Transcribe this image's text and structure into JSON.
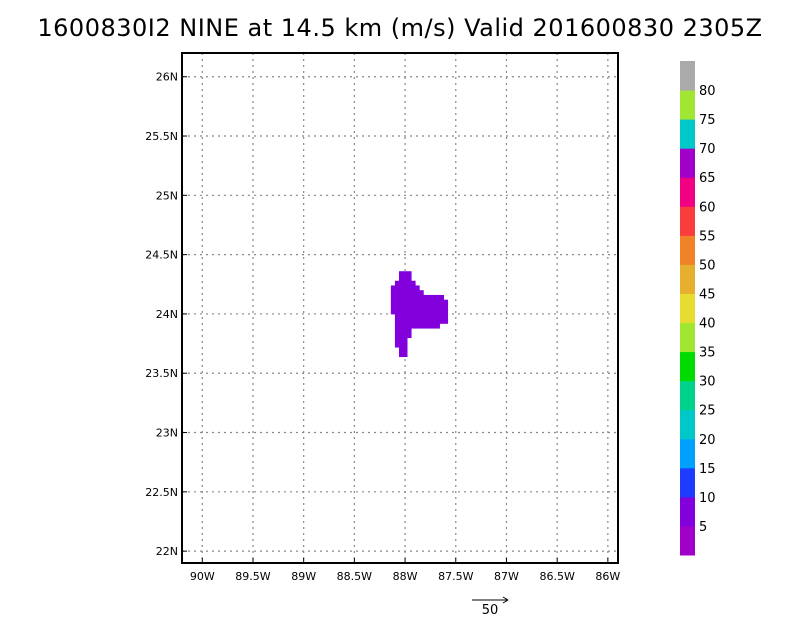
{
  "chart_data": {
    "type": "heatmap",
    "title": "1600830I2 NINE at 14.5 km (m/s) Valid 201600830 2305Z",
    "xlim": [
      -90.2,
      -85.9
    ],
    "ylim": [
      21.9,
      26.2
    ],
    "x_ticks": [
      -90,
      -89.5,
      -89,
      -88.5,
      -88,
      -87.5,
      -87,
      -86.5,
      -86
    ],
    "x_tick_labels": [
      "90W",
      "89.5W",
      "89W",
      "88.5W",
      "88W",
      "87.5W",
      "87W",
      "86.5W",
      "86W"
    ],
    "y_ticks": [
      22,
      22.5,
      23,
      23.5,
      24,
      24.5,
      25,
      25.5,
      26
    ],
    "y_tick_labels": [
      "22N",
      "22.5N",
      "23N",
      "23.5N",
      "24N",
      "24.5N",
      "25N",
      "25.5N",
      "26N"
    ],
    "grid": true,
    "vector_reference": {
      "label": "50"
    },
    "colorbar": {
      "levels": [
        "5",
        "10",
        "15",
        "20",
        "25",
        "30",
        "35",
        "40",
        "45",
        "50",
        "55",
        "60",
        "65",
        "70",
        "75",
        "80"
      ],
      "colors": [
        "#a000c8",
        "#8200dc",
        "#1e3cff",
        "#00a0ff",
        "#00c8c8",
        "#00d28c",
        "#00dc00",
        "#a0e632",
        "#e6dc32",
        "#e6af2d",
        "#f08228",
        "#fa3c3c",
        "#f00082",
        "#a000c8",
        "#00c8c8",
        "#a0e632",
        "#aaaaaa"
      ]
    },
    "cells": {
      "dlon": 0.04,
      "dlat": 0.04,
      "value": 5,
      "color": "#8200dc",
      "lat_rows": [
        {
          "lat": 24.32,
          "lon_min": -88.06,
          "lon_max": -87.94
        },
        {
          "lat": 24.28,
          "lon_min": -88.06,
          "lon_max": -87.94
        },
        {
          "lat": 24.24,
          "lon_min": -88.1,
          "lon_max": -87.9
        },
        {
          "lat": 24.2,
          "lon_min": -88.14,
          "lon_max": -87.86
        },
        {
          "lat": 24.16,
          "lon_min": -88.14,
          "lon_max": -87.82
        },
        {
          "lat": 24.12,
          "lon_min": -88.14,
          "lon_max": -87.62
        },
        {
          "lat": 24.08,
          "lon_min": -88.14,
          "lon_max": -87.58
        },
        {
          "lat": 24.04,
          "lon_min": -88.14,
          "lon_max": -87.58
        },
        {
          "lat": 24.0,
          "lon_min": -88.14,
          "lon_max": -87.58
        },
        {
          "lat": 23.96,
          "lon_min": -88.1,
          "lon_max": -87.58
        },
        {
          "lat": 23.92,
          "lon_min": -88.1,
          "lon_max": -87.58
        },
        {
          "lat": 23.88,
          "lon_min": -88.1,
          "lon_max": -87.66
        },
        {
          "lat": 23.84,
          "lon_min": -88.1,
          "lon_max": -87.94
        },
        {
          "lat": 23.8,
          "lon_min": -88.1,
          "lon_max": -87.94
        },
        {
          "lat": 23.76,
          "lon_min": -88.1,
          "lon_max": -87.98
        },
        {
          "lat": 23.72,
          "lon_min": -88.1,
          "lon_max": -87.98
        },
        {
          "lat": 23.68,
          "lon_min": -88.06,
          "lon_max": -87.98
        },
        {
          "lat": 23.64,
          "lon_min": -88.06,
          "lon_max": -87.98
        }
      ]
    }
  }
}
